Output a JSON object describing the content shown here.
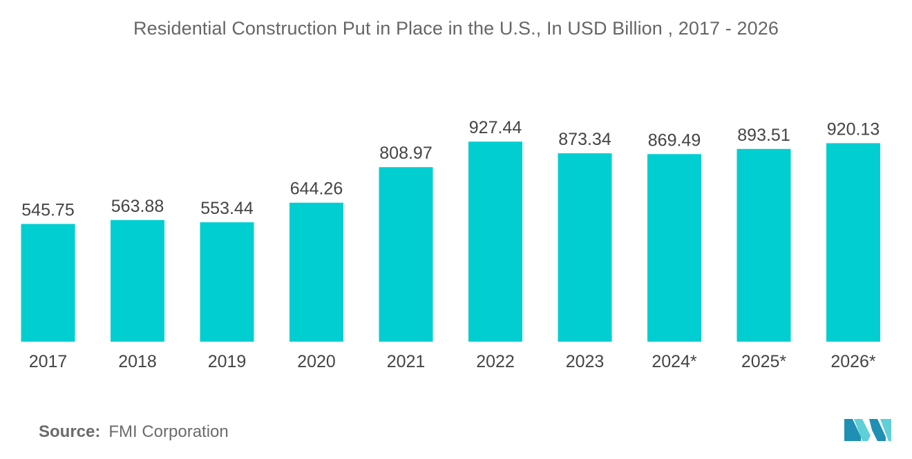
{
  "chart_data": {
    "type": "bar",
    "title": "Residential Construction Put in Place in the U.S., In USD Billion , 2017 - 2026",
    "xlabel": "",
    "ylabel": "",
    "categories": [
      "2017",
      "2018",
      "2019",
      "2020",
      "2021",
      "2022",
      "2023",
      "2024*",
      "2025*",
      "2026*"
    ],
    "values": [
      545.75,
      563.88,
      553.44,
      644.26,
      808.97,
      927.44,
      873.34,
      869.49,
      893.51,
      920.13
    ],
    "value_labels": [
      "545.75",
      "563.88",
      "553.44",
      "644.26",
      "808.97",
      "927.44",
      "873.34",
      "869.49",
      "893.51",
      "920.13"
    ],
    "ylim": [
      0,
      1000
    ],
    "grid": false,
    "legend": "none",
    "bar_color": "#00CED1"
  },
  "source": {
    "label": "Source:",
    "value": "FMI Corporation"
  },
  "logo": {
    "icon": "mordor-intelligence-logo",
    "colors": [
      "#1f8fb3",
      "#5fcfd8"
    ]
  }
}
